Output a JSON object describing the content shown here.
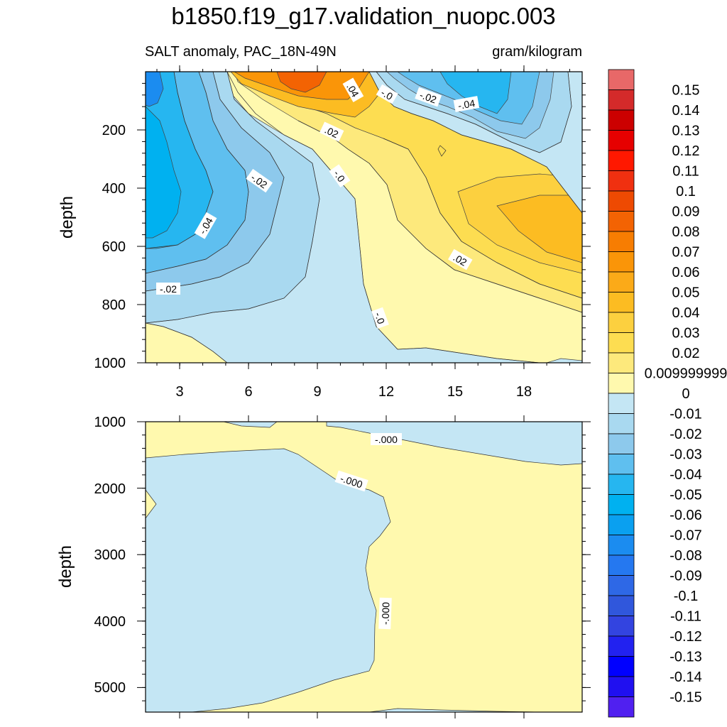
{
  "title": "b1850.f19_g17.validation_nuopc.003",
  "subtitle_left": "SALT anomaly, PAC_18N-49N",
  "subtitle_right": "gram/kilogram",
  "colors": {
    "pos": [
      "#fff9ae",
      "#fde97c",
      "#fddd51",
      "#fcd03f",
      "#fcbc22",
      "#fbaa18",
      "#fa9508",
      "#f77d02",
      "#f36303",
      "#ee4a02",
      "#f03010",
      "#ff1800",
      "#e60000",
      "#cc0000",
      "#d42a2a",
      "#e86868",
      "#ffb3b3"
    ],
    "neg": [
      "#c4e6f4",
      "#a9d9f0",
      "#8dc9ec",
      "#5fbfef",
      "#26b6f0",
      "#00b1f0",
      "#0aa0f0",
      "#1b8cf0",
      "#2578f0",
      "#2e68e6",
      "#3057dc",
      "#3344e0",
      "#2222f0",
      "#0000ff",
      "#2010f0",
      "#5020f0",
      "#8a2be2"
    ]
  },
  "chart_data": [
    {
      "type": "contour",
      "panel": "upper",
      "ylabel": "depth",
      "ylim": [
        1000,
        0
      ],
      "xlim": [
        1.5,
        21
      ],
      "xticks": [
        "3",
        "6",
        "9",
        "12",
        "15",
        "18"
      ],
      "yticks": [
        "200",
        "400",
        "600",
        "800",
        "1000"
      ],
      "contour_labels": [
        "-.04",
        "-.02",
        "-.0",
        "-.02",
        "-.04",
        ".04",
        ".02",
        "-.0",
        ".02",
        "-.02",
        "-.0"
      ],
      "regions": [
        {
          "desc": "western upper ocean",
          "value": -0.06
        },
        {
          "desc": "central surface",
          "value": 0.08
        },
        {
          "desc": "eastern surface",
          "value": -0.05
        },
        {
          "desc": "eastern 400-700m",
          "value": 0.05
        },
        {
          "desc": "deep central",
          "value": -0.01
        }
      ]
    },
    {
      "type": "contour",
      "panel": "lower",
      "ylabel": "depth",
      "ylim": [
        5300,
        1000
      ],
      "xlim": [
        1.5,
        21
      ],
      "yticks": [
        "1000",
        "2000",
        "3000",
        "4000",
        "5000"
      ],
      "contour_labels": [
        "-.000",
        "-.000",
        "-.000"
      ],
      "regions": [
        {
          "desc": "western deep",
          "value": -0.005
        },
        {
          "desc": "eastern deep",
          "value": 0.005
        }
      ]
    }
  ],
  "colorbar": {
    "labels": [
      "0.15",
      "0.14",
      "0.13",
      "0.12",
      "0.11",
      "0.1",
      "0.09",
      "0.08",
      "0.07",
      "0.06",
      "0.05",
      "0.04",
      "0.03",
      "0.02",
      "0.009999999",
      "0",
      "-0.01",
      "-0.02",
      "-0.03",
      "-0.04",
      "-0.05",
      "-0.06",
      "-0.07",
      "-0.08",
      "-0.09",
      "-0.1",
      "-0.11",
      "-0.12",
      "-0.13",
      "-0.14",
      "-0.15"
    ]
  }
}
